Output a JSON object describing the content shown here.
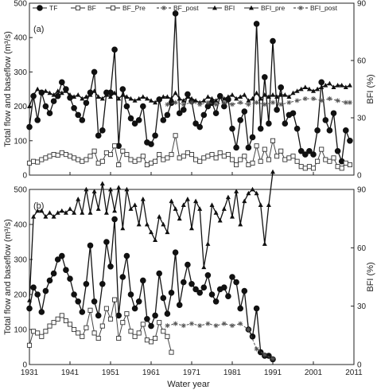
{
  "chart_data": [
    {
      "type": "line",
      "panel_label": "(a)",
      "xlabel": "",
      "ylabel_left": "Total flow and baseflow (m³/s)",
      "ylabel_right": "BFI (%)",
      "xlim": [
        1931,
        2011
      ],
      "ylim_left": [
        0,
        500
      ],
      "ylim_right": [
        0,
        90
      ],
      "yticks_left": [
        "0",
        "100",
        "200",
        "300",
        "400",
        "500"
      ],
      "yticks_right": [
        "0",
        "30",
        "60",
        "90"
      ],
      "legend": {
        "position": "top",
        "entries": [
          "TF",
          "BF",
          "BF_Pre",
          "BF_post",
          "BFI",
          "BFI_pre",
          "BFI_post"
        ]
      },
      "series": [
        {
          "name": "TF",
          "axis": "left",
          "style": "solid-circle",
          "x": [
            1931,
            1932,
            1933,
            1934,
            1935,
            1936,
            1937,
            1938,
            1939,
            1940,
            1941,
            1942,
            1943,
            1944,
            1945,
            1946,
            1947,
            1948,
            1949,
            1950,
            1951,
            1952,
            1953,
            1954,
            1955,
            1956,
            1957,
            1958,
            1959,
            1960,
            1961,
            1962,
            1963,
            1964,
            1965,
            1966,
            1967,
            1968,
            1969,
            1970,
            1971,
            1972,
            1973,
            1974,
            1975,
            1976,
            1977,
            1978,
            1979,
            1980,
            1981,
            1982,
            1983,
            1984,
            1985,
            1986,
            1987,
            1988,
            1989,
            1990,
            1991,
            1992,
            1993,
            1994,
            1995,
            1996,
            1997,
            1998,
            1999,
            2000,
            2001,
            2002,
            2003,
            2004,
            2005,
            2006,
            2007,
            2008,
            2009,
            2010
          ],
          "values": [
            140,
            230,
            160,
            240,
            200,
            180,
            215,
            230,
            270,
            250,
            225,
            195,
            175,
            160,
            210,
            240,
            300,
            115,
            130,
            240,
            240,
            365,
            85,
            250,
            200,
            165,
            150,
            160,
            200,
            95,
            90,
            115,
            220,
            160,
            175,
            210,
            470,
            180,
            190,
            235,
            215,
            150,
            140,
            175,
            200,
            210,
            180,
            230,
            200,
            220,
            135,
            80,
            160,
            185,
            80,
            110,
            440,
            135,
            285,
            150,
            390,
            190,
            255,
            150,
            175,
            180,
            135,
            70,
            60,
            70,
            60,
            130,
            270,
            160,
            130,
            180,
            70,
            40,
            130,
            100
          ]
        },
        {
          "name": "BF",
          "axis": "left",
          "style": "open-square",
          "x": [
            1931,
            1932,
            1933,
            1934,
            1935,
            1936,
            1937,
            1938,
            1939,
            1940,
            1941,
            1942,
            1943,
            1944,
            1945,
            1946,
            1947,
            1948,
            1949,
            1950,
            1951,
            1952,
            1953,
            1954,
            1955,
            1956,
            1957,
            1958,
            1959,
            1960,
            1961,
            1962,
            1963,
            1964,
            1965,
            1966,
            1967,
            1968,
            1969,
            1970,
            1971,
            1972,
            1973,
            1974,
            1975,
            1976,
            1977,
            1978,
            1979,
            1980,
            1981,
            1982,
            1983,
            1984,
            1985,
            1986,
            1987,
            1988,
            1989,
            1990,
            1991,
            1992,
            1993,
            1994,
            1995,
            1996,
            1997,
            1998,
            1999,
            2000,
            2001,
            2002,
            2003,
            2004,
            2005,
            2006,
            2007,
            2008,
            2009,
            2010
          ],
          "values": [
            35,
            40,
            38,
            45,
            50,
            55,
            60,
            58,
            65,
            60,
            55,
            50,
            45,
            40,
            45,
            55,
            70,
            35,
            40,
            65,
            60,
            85,
            30,
            70,
            60,
            45,
            40,
            45,
            55,
            30,
            35,
            40,
            60,
            45,
            50,
            60,
            115,
            50,
            55,
            65,
            60,
            45,
            40,
            50,
            55,
            60,
            50,
            65,
            55,
            60,
            45,
            30,
            45,
            55,
            30,
            35,
            85,
            40,
            75,
            45,
            100,
            55,
            70,
            45,
            50,
            55,
            40,
            25,
            20,
            25,
            20,
            40,
            75,
            45,
            40,
            50,
            25,
            20,
            35,
            30
          ]
        },
        {
          "name": "BFI",
          "axis": "right",
          "style": "solid-triangle",
          "x": [
            1931,
            1932,
            1933,
            1934,
            1935,
            1936,
            1937,
            1938,
            1939,
            1940,
            1941,
            1942,
            1943,
            1944,
            1945,
            1946,
            1947,
            1948,
            1949,
            1950,
            1951,
            1952,
            1953,
            1954,
            1955,
            1956,
            1957,
            1958,
            1959,
            1960,
            1961,
            1962,
            1963,
            1964,
            1965,
            1966,
            1967,
            1968,
            1969,
            1970,
            1971,
            1972,
            1973,
            1974,
            1975,
            1976,
            1977,
            1978,
            1979,
            1980,
            1981,
            1982,
            1983,
            1984,
            1985,
            1986,
            1987,
            1988,
            1989,
            1990,
            1991,
            1992,
            1993,
            1994,
            1995,
            1996,
            1997,
            1998,
            1999,
            2000,
            2001,
            2002,
            2003,
            2004,
            2005,
            2006,
            2007,
            2008,
            2009,
            2010
          ],
          "values": [
            36,
            42,
            45,
            43,
            44,
            43,
            42,
            44,
            43,
            44,
            42,
            41,
            42,
            40,
            41,
            42,
            44,
            41,
            40,
            42,
            41,
            43,
            40,
            42,
            41,
            40,
            39,
            40,
            41,
            40,
            39,
            38,
            40,
            41,
            41,
            40,
            43,
            40,
            39,
            41,
            40,
            39,
            38,
            39,
            41,
            40,
            39,
            41,
            40,
            41,
            42,
            40,
            41,
            42,
            39,
            40,
            43,
            40,
            42,
            41,
            42,
            41,
            42,
            42,
            41,
            43,
            44,
            45,
            46,
            45,
            44,
            45,
            46,
            47,
            48,
            46,
            47,
            47,
            46,
            47
          ]
        },
        {
          "name": "BFI_post",
          "axis": "right",
          "style": "dashed-star",
          "x": [
            1965,
            1967,
            1969,
            1971,
            1973,
            1975,
            1977,
            1979,
            1981,
            1983,
            1985,
            1987,
            1989,
            1991,
            1993,
            1995,
            1997,
            1999,
            2001,
            2003,
            2005,
            2007,
            2009,
            2010
          ],
          "values": [
            37,
            38,
            37,
            38,
            37,
            38,
            37,
            38,
            37,
            38,
            37,
            38,
            37,
            38,
            37,
            38,
            39,
            40,
            40,
            39,
            40,
            39,
            38,
            38
          ]
        }
      ]
    },
    {
      "type": "line",
      "panel_label": "(b)",
      "xlabel": "Water year",
      "ylabel_left": "Total flow and baseflow (m³/s)",
      "ylabel_right": "BFI (%)",
      "xlim": [
        1931,
        2011
      ],
      "ylim_left": [
        0,
        500
      ],
      "ylim_right": [
        0,
        90
      ],
      "yticks_left": [
        "0",
        "100",
        "200",
        "300",
        "400",
        "500"
      ],
      "yticks_right": [
        "0",
        "30",
        "60",
        "90"
      ],
      "xticks": [
        "1931",
        "1941",
        "1951",
        "1961",
        "1971",
        "1981",
        "1991",
        "2001",
        "2011"
      ],
      "series": [
        {
          "name": "TF",
          "axis": "left",
          "style": "solid-circle",
          "x": [
            1931,
            1932,
            1933,
            1934,
            1935,
            1936,
            1937,
            1938,
            1939,
            1940,
            1941,
            1942,
            1943,
            1944,
            1945,
            1946,
            1947,
            1948,
            1949,
            1950,
            1951,
            1952,
            1953,
            1954,
            1955,
            1956,
            1957,
            1958,
            1959,
            1960,
            1961,
            1962,
            1963,
            1964,
            1965,
            1966,
            1967,
            1968,
            1969,
            1970,
            1971,
            1972,
            1973,
            1974,
            1975,
            1976,
            1977,
            1978,
            1979,
            1980,
            1981,
            1982,
            1983,
            1984,
            1985,
            1986,
            1987,
            1988,
            1989,
            1990,
            1991
          ],
          "values": [
            160,
            220,
            200,
            150,
            210,
            240,
            260,
            300,
            310,
            270,
            245,
            200,
            180,
            150,
            230,
            340,
            180,
            140,
            230,
            350,
            280,
            415,
            140,
            250,
            310,
            200,
            160,
            180,
            240,
            130,
            110,
            140,
            260,
            190,
            145,
            205,
            320,
            170,
            235,
            285,
            230,
            215,
            205,
            220,
            255,
            200,
            180,
            215,
            220,
            195,
            250,
            235,
            160,
            210,
            100,
            80,
            160,
            35,
            25,
            25,
            15
          ]
        },
        {
          "name": "BF",
          "axis": "left",
          "style": "open-square",
          "x": [
            1931,
            1932,
            1933,
            1934,
            1935,
            1936,
            1937,
            1938,
            1939,
            1940,
            1941,
            1942,
            1943,
            1944,
            1945,
            1946,
            1947,
            1948,
            1949,
            1950,
            1951,
            1952,
            1953,
            1954,
            1955,
            1956,
            1957,
            1958,
            1959,
            1960,
            1961,
            1962,
            1963,
            1964,
            1965,
            1966
          ],
          "values": [
            55,
            95,
            90,
            80,
            95,
            110,
            120,
            130,
            140,
            125,
            115,
            100,
            90,
            80,
            105,
            155,
            90,
            75,
            110,
            160,
            130,
            185,
            75,
            120,
            145,
            95,
            80,
            90,
            115,
            70,
            65,
            75,
            120,
            95,
            80,
            35
          ]
        },
        {
          "name": "BFI",
          "axis": "right",
          "style": "solid-triangle",
          "x": [
            1931,
            1932,
            1933,
            1934,
            1935,
            1936,
            1937,
            1938,
            1939,
            1940,
            1941,
            1942,
            1943,
            1944,
            1945,
            1946,
            1947,
            1948,
            1949,
            1950,
            1951,
            1952,
            1953,
            1954,
            1955,
            1956,
            1957,
            1958,
            1959,
            1960,
            1961,
            1962,
            1963,
            1964,
            1965,
            1966,
            1967,
            1968,
            1969,
            1970,
            1971,
            1972,
            1973,
            1974,
            1975,
            1976,
            1977,
            1978,
            1979,
            1980,
            1981,
            1982,
            1983,
            1984,
            1985,
            1986,
            1987,
            1988,
            1989,
            1990,
            1991
          ],
          "values": [
            33,
            76,
            79,
            79,
            76,
            78,
            76,
            78,
            79,
            78,
            80,
            78,
            85,
            78,
            90,
            78,
            89,
            80,
            93,
            78,
            90,
            79,
            91,
            70,
            90,
            80,
            82,
            72,
            85,
            72,
            68,
            64,
            76,
            72,
            68,
            84,
            80,
            75,
            82,
            85,
            70,
            84,
            80,
            50,
            62,
            82,
            78,
            74,
            80,
            86,
            76,
            89,
            72,
            84,
            88,
            90,
            88,
            82,
            62,
            82,
            99
          ]
        },
        {
          "name": "BFI_post",
          "axis": "right",
          "style": "dashed-star",
          "x": [
            1965,
            1967,
            1969,
            1971,
            1973,
            1975,
            1977,
            1979,
            1981,
            1983,
            1985,
            1987,
            1989,
            1991
          ],
          "values": [
            20,
            21,
            20,
            21,
            20,
            21,
            20,
            21,
            20,
            21,
            18,
            8,
            5,
            3
          ]
        }
      ]
    }
  ]
}
